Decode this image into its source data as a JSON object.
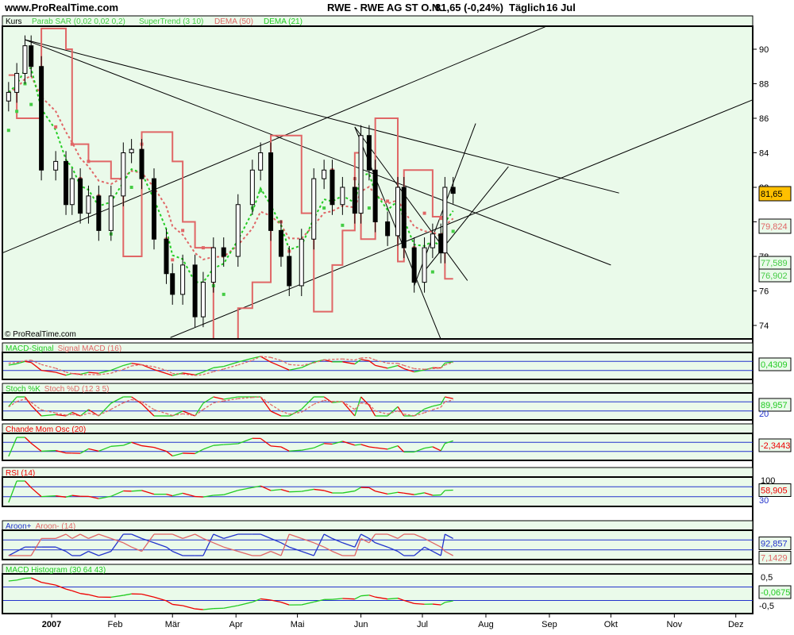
{
  "header": {
    "site": "www.ProRealTime.com",
    "instrument": "RWE - RWE AG ST O.N.",
    "quote": "81,65 (-0,24%)",
    "period": "Täglich",
    "date": "16 Jul"
  },
  "main_panel": {
    "legend": {
      "kurs": "Kurs",
      "sar": "Parab SAR (0,02 0,02 0,2)",
      "supertrend": "SuperTrend (3 10)",
      "dema50": "DEMA (50)",
      "dema21": "DEMA (21)"
    },
    "copyright": "© ProRealTime.com",
    "value_labels": {
      "price": "81,65",
      "dema50": "79,824",
      "dema21": "77,589",
      "supertrend": "76,902"
    }
  },
  "panels": [
    {
      "id": "macd",
      "title_a": "MACD-Signal",
      "title_b": "Signal MACD (16)",
      "value": "0,4309"
    },
    {
      "id": "stoch",
      "title_a": "Stoch %K",
      "title_b": "Stoch %D (12 3 5)",
      "value": "89,957",
      "level_label": "20"
    },
    {
      "id": "chande",
      "title_a": "Chande Mom Osc (20)",
      "title_b": "",
      "value": "-2,3443"
    },
    {
      "id": "rsi",
      "title_a": "RSI (14)",
      "title_b": "",
      "value": "58,905",
      "top_label": "100",
      "level_label": "30"
    },
    {
      "id": "aroon",
      "title_a": "Aroon+",
      "title_b": "Aroon- (14)",
      "value": "92,857",
      "value2": "7,1429"
    },
    {
      "id": "macdhist",
      "title_a": "MACD Histogram (30 64 43)",
      "title_b": "",
      "value": "-0,0675",
      "top_label": "0,5",
      "bottom_label": "-0,5"
    }
  ],
  "colors": {
    "background": "#eafaea",
    "green": "#22cc22",
    "red": "#e06666",
    "blue": "#2233cc",
    "price_box": "#ffc000"
  },
  "chart_data": {
    "type": "candlestick",
    "ylim": [
      73,
      91.5
    ],
    "yticks": [
      74,
      76,
      78,
      80,
      82,
      84,
      86,
      88,
      90
    ],
    "xtick_labels": [
      "2007",
      "Feb",
      "Mär",
      "Apr",
      "Mai",
      "Jun",
      "Jul",
      "Aug",
      "Sep",
      "Okt",
      "Nov",
      "Dez"
    ],
    "xtick_dates": [
      "2007-01-01",
      "2007-02-01",
      "2007-03-01",
      "2007-04-01",
      "2007-05-01",
      "2007-06-01",
      "2007-07-01",
      "2007-08-01",
      "2007-09-01",
      "2007-10-01",
      "2007-11-01",
      "2007-12-01"
    ],
    "closes": [
      [
        "2006-12-11",
        87.5
      ],
      [
        "2006-12-15",
        88.6
      ],
      [
        "2006-12-19",
        90.2
      ],
      [
        "2006-12-22",
        89
      ],
      [
        "2006-12-27",
        83
      ],
      [
        "2007-01-03",
        83.5
      ],
      [
        "2007-01-08",
        81
      ],
      [
        "2007-01-11",
        82.5
      ],
      [
        "2007-01-15",
        80.5
      ],
      [
        "2007-01-19",
        81.5
      ],
      [
        "2007-01-24",
        79.5
      ],
      [
        "2007-01-30",
        81.5
      ],
      [
        "2007-02-05",
        84
      ],
      [
        "2007-02-09",
        84.2
      ],
      [
        "2007-02-14",
        82.5
      ],
      [
        "2007-02-20",
        79
      ],
      [
        "2007-02-26",
        77
      ],
      [
        "2007-03-01",
        75.8
      ],
      [
        "2007-03-06",
        77.5
      ],
      [
        "2007-03-12",
        74.5
      ],
      [
        "2007-03-16",
        76.5
      ],
      [
        "2007-03-21",
        78.5
      ],
      [
        "2007-03-26",
        78
      ],
      [
        "2007-04-02",
        81
      ],
      [
        "2007-04-09",
        83
      ],
      [
        "2007-04-13",
        84
      ],
      [
        "2007-04-18",
        79.5
      ],
      [
        "2007-04-23",
        78
      ],
      [
        "2007-04-27",
        76.3
      ],
      [
        "2007-05-03",
        79
      ],
      [
        "2007-05-09",
        82.5
      ],
      [
        "2007-05-14",
        83
      ],
      [
        "2007-05-18",
        81
      ],
      [
        "2007-05-23",
        82
      ],
      [
        "2007-05-29",
        80.5
      ],
      [
        "2007-06-01",
        85
      ],
      [
        "2007-06-05",
        83
      ],
      [
        "2007-06-08",
        80
      ],
      [
        "2007-06-14",
        79.2
      ],
      [
        "2007-06-19",
        82
      ],
      [
        "2007-06-22",
        78.5
      ],
      [
        "2007-06-27",
        76.5
      ],
      [
        "2007-07-02",
        78.5
      ],
      [
        "2007-07-06",
        79.3
      ],
      [
        "2007-07-10",
        78.2
      ],
      [
        "2007-07-12",
        82
      ],
      [
        "2007-07-16",
        81.65
      ]
    ],
    "trendlines": [
      [
        [
          "2006-12-19",
          90.55
        ],
        [
          "2007-10-05",
          81.67
        ]
      ],
      [
        [
          "2006-12-19",
          90.55
        ],
        [
          "2007-10-01",
          77.5
        ]
      ],
      [
        [
          "2006-12-08",
          78.2
        ],
        [
          "2007-08-30",
          91.3
        ]
      ],
      [
        [
          "2007-02-28",
          73.3
        ],
        [
          "2007-12-14",
          87.3
        ]
      ],
      [
        [
          "2007-05-29",
          85.5
        ],
        [
          "2007-07-23",
          76.6
        ]
      ],
      [
        [
          "2007-05-29",
          85.5
        ],
        [
          "2007-07-10",
          73.2
        ]
      ],
      [
        [
          "2007-06-27",
          76.3
        ],
        [
          "2007-07-27",
          85.7
        ]
      ],
      [
        [
          "2007-07-01",
          77
        ],
        [
          "2007-08-12",
          83.2
        ]
      ]
    ]
  }
}
